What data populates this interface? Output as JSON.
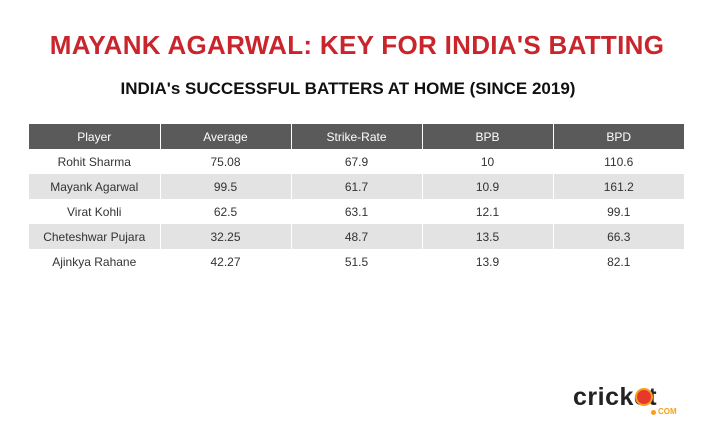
{
  "title": "MAYANK AGARWAL: KEY FOR INDIA'S BATTING",
  "subtitle": "INDIA's SUCCESSFUL BATTERS AT HOME (SINCE 2019)",
  "colors": {
    "title": "#c8252c",
    "header_bg": "#5a5a5a",
    "stripe": "#e3e3e3",
    "logo_accent": "#f4a11d"
  },
  "table": {
    "headers": [
      "Player",
      "Average",
      "Strike-Rate",
      "BPB",
      "BPD"
    ],
    "rows": [
      [
        "Rohit Sharma",
        "75.08",
        "67.9",
        "10",
        "110.6"
      ],
      [
        "Mayank Agarwal",
        "99.5",
        "61.7",
        "10.9",
        "161.2"
      ],
      [
        "Virat Kohli",
        "62.5",
        "63.1",
        "12.1",
        "99.1"
      ],
      [
        "Cheteshwar Pujara",
        "32.25",
        "48.7",
        "13.5",
        "66.3"
      ],
      [
        "Ajinkya Rahane",
        "42.27",
        "51.5",
        "13.9",
        "82.1"
      ]
    ]
  },
  "logo": {
    "text": "cricket",
    "suffix": "COM",
    "icon": "cricket-ball-icon"
  }
}
